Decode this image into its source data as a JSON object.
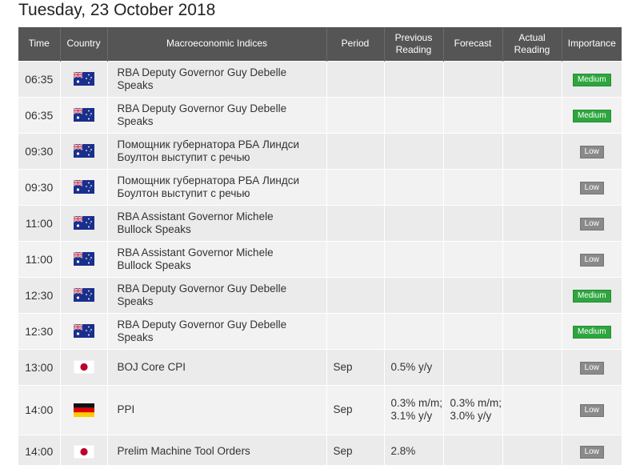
{
  "date_title": "Tuesday, 23 October 2018",
  "columns": {
    "time": "Time",
    "country": "Country",
    "indices": "Macroeconomic Indices",
    "period": "Period",
    "previous_line1": "Previous",
    "previous_line2": "Reading",
    "forecast": "Forecast",
    "actual_line1": "Actual",
    "actual_line2": "Reading",
    "importance": "Importance"
  },
  "colors": {
    "header_bg": "#555555",
    "medium_badge": "#2ea63f",
    "low_badge": "#8a8a8a"
  },
  "rows": [
    {
      "time": "06:35",
      "country": "australia-flag-icon",
      "event_line1": "RBA Deputy Governor Guy Debelle",
      "event_line2": "Speaks",
      "period": "",
      "prev_line1": "",
      "prev_line2": "",
      "forecast_line1": "",
      "forecast_line2": "",
      "actual": "",
      "importance": "Medium"
    },
    {
      "time": "06:35",
      "country": "australia-flag-icon",
      "event_line1": "RBA Deputy Governor Guy Debelle",
      "event_line2": "Speaks",
      "period": "",
      "prev_line1": "",
      "prev_line2": "",
      "forecast_line1": "",
      "forecast_line2": "",
      "actual": "",
      "importance": "Medium"
    },
    {
      "time": "09:30",
      "country": "australia-flag-icon",
      "event_line1": "Помощник губернатора РБА Линдси",
      "event_line2": "Боултон выступит с речью",
      "period": "",
      "prev_line1": "",
      "prev_line2": "",
      "forecast_line1": "",
      "forecast_line2": "",
      "actual": "",
      "importance": "Low"
    },
    {
      "time": "09:30",
      "country": "australia-flag-icon",
      "event_line1": "Помощник губернатора РБА Линдси",
      "event_line2": "Боултон выступит с речью",
      "period": "",
      "prev_line1": "",
      "prev_line2": "",
      "forecast_line1": "",
      "forecast_line2": "",
      "actual": "",
      "importance": "Low"
    },
    {
      "time": "11:00",
      "country": "australia-flag-icon",
      "event_line1": "RBA Assistant Governor Michele",
      "event_line2": "Bullock Speaks",
      "period": "",
      "prev_line1": "",
      "prev_line2": "",
      "forecast_line1": "",
      "forecast_line2": "",
      "actual": "",
      "importance": "Low"
    },
    {
      "time": "11:00",
      "country": "australia-flag-icon",
      "event_line1": "RBA Assistant Governor Michele",
      "event_line2": "Bullock Speaks",
      "period": "",
      "prev_line1": "",
      "prev_line2": "",
      "forecast_line1": "",
      "forecast_line2": "",
      "actual": "",
      "importance": "Low"
    },
    {
      "time": "12:30",
      "country": "australia-flag-icon",
      "event_line1": "RBA Deputy Governor Guy Debelle",
      "event_line2": "Speaks",
      "period": "",
      "prev_line1": "",
      "prev_line2": "",
      "forecast_line1": "",
      "forecast_line2": "",
      "actual": "",
      "importance": "Medium"
    },
    {
      "time": "12:30",
      "country": "australia-flag-icon",
      "event_line1": "RBA Deputy Governor Guy Debelle",
      "event_line2": "Speaks",
      "period": "",
      "prev_line1": "",
      "prev_line2": "",
      "forecast_line1": "",
      "forecast_line2": "",
      "actual": "",
      "importance": "Medium"
    },
    {
      "time": "13:00",
      "country": "japan-flag-icon",
      "event_line1": "BOJ Core CPI",
      "event_line2": "",
      "period": "Sep",
      "prev_line1": "0.5% y/y",
      "prev_line2": "",
      "forecast_line1": "",
      "forecast_line2": "",
      "actual": "",
      "importance": "Low"
    },
    {
      "time": "14:00",
      "country": "germany-flag-icon",
      "event_line1": "PPI",
      "event_line2": "",
      "period": "Sep",
      "prev_line1": "0.3% m/m;",
      "prev_line2": "3.1% y/y",
      "forecast_line1": "0.3% m/m;",
      "forecast_line2": "3.0% y/y",
      "actual": "",
      "importance": "Low"
    },
    {
      "time": "14:00",
      "country": "japan-flag-icon",
      "event_line1": "Prelim Machine Tool Orders",
      "event_line2": "",
      "period": "Sep",
      "prev_line1": "2.8%",
      "prev_line2": "",
      "forecast_line1": "",
      "forecast_line2": "",
      "actual": "",
      "importance": "Low"
    }
  ]
}
